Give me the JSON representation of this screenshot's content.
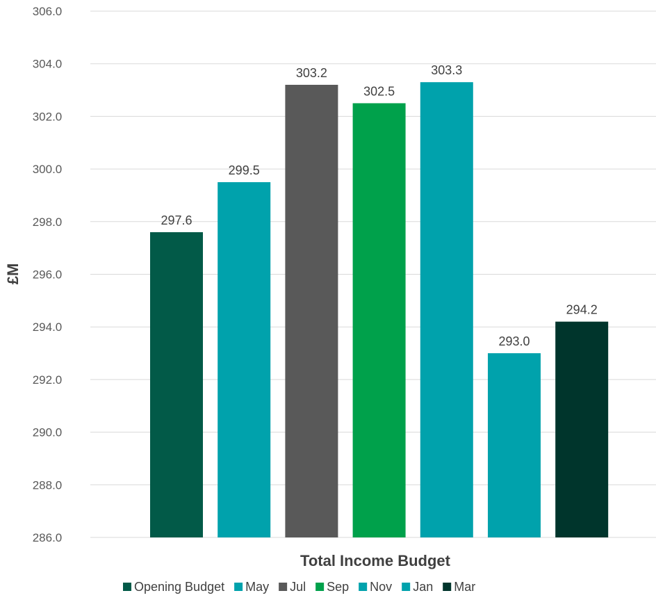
{
  "chart_data": {
    "type": "bar",
    "categories": [
      "Total Income Budget"
    ],
    "series": [
      {
        "name": "Opening Budget",
        "values": [
          297.6
        ],
        "color": "#025a48"
      },
      {
        "name": "May",
        "values": [
          299.5
        ],
        "color": "#00a2ac"
      },
      {
        "name": "Jul",
        "values": [
          303.2
        ],
        "color": "#595959"
      },
      {
        "name": "Sep",
        "values": [
          302.5
        ],
        "color": "#00a14b"
      },
      {
        "name": "Nov",
        "values": [
          303.3
        ],
        "color": "#00a2ac"
      },
      {
        "name": "Jan",
        "values": [
          293.0
        ],
        "color": "#00a2ac"
      },
      {
        "name": "Mar",
        "values": [
          294.2
        ],
        "color": "#00352c"
      }
    ],
    "data_labels": [
      "297.6",
      "299.5",
      "303.2",
      "302.5",
      "303.3",
      "293.0",
      "294.2"
    ],
    "yticks": [
      "286.0",
      "288.0",
      "290.0",
      "292.0",
      "294.0",
      "296.0",
      "298.0",
      "300.0",
      "302.0",
      "304.0",
      "306.0"
    ],
    "xlabel": "Total Income Budget",
    "ylabel": "£M",
    "ylim": [
      286,
      306
    ],
    "grid": true,
    "legend_position": "bottom"
  }
}
